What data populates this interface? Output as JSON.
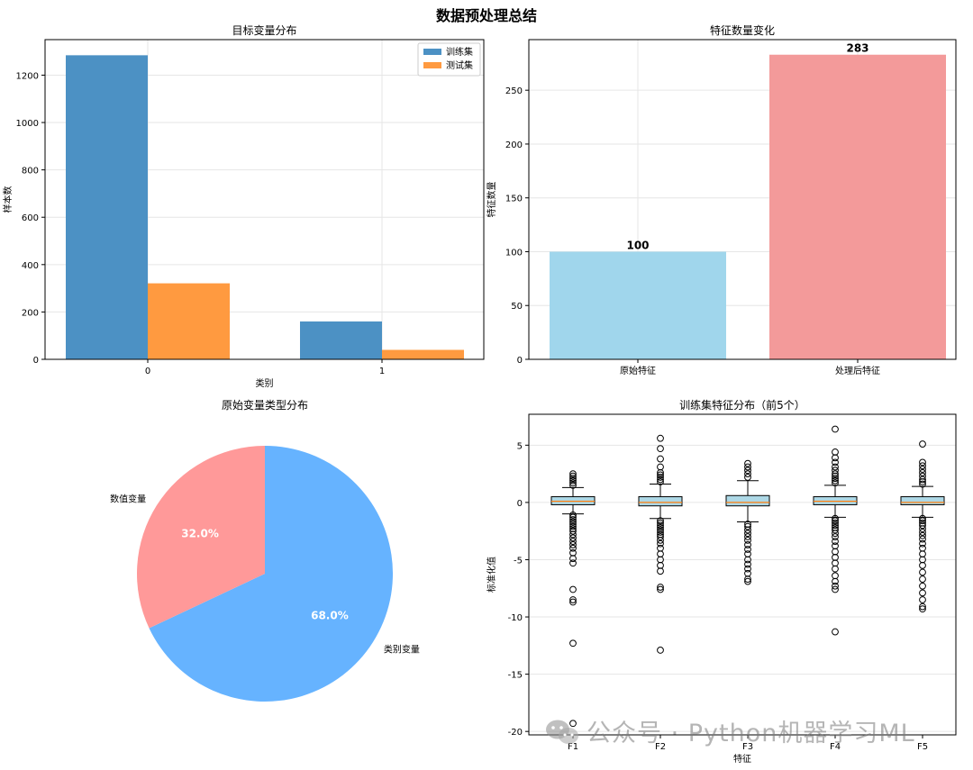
{
  "page_title": "数据预处理总结",
  "watermark": "公众号 · Python机器学习ML",
  "chart_data": [
    {
      "id": "target",
      "type": "bar",
      "title": "目标变量分布",
      "xlabel": "类别",
      "ylabel": "样本数",
      "categories": [
        "0",
        "1"
      ],
      "series": [
        {
          "name": "训练集",
          "values": [
            1284,
            160
          ],
          "color": "#4c91c4"
        },
        {
          "name": "测试集",
          "values": [
            321,
            40
          ],
          "color": "#ff9a40"
        }
      ],
      "ylim": [
        0,
        1350
      ],
      "yticks": [
        0,
        200,
        400,
        600,
        800,
        1000,
        1200
      ],
      "grid": true,
      "legend": "top-right"
    },
    {
      "id": "features",
      "type": "bar",
      "title": "特征数量变化",
      "xlabel": "",
      "ylabel": "特征数量",
      "categories": [
        "原始特征",
        "处理后特征"
      ],
      "values": [
        100,
        283
      ],
      "data_labels": [
        "100",
        "283"
      ],
      "colors": [
        "#a0d6ec",
        "#f39a9a"
      ],
      "ylim": [
        0,
        297
      ],
      "yticks": [
        0,
        50,
        100,
        150,
        200,
        250
      ],
      "grid": true
    },
    {
      "id": "types",
      "type": "pie",
      "title": "原始变量类型分布",
      "labels": [
        "类别变量",
        "数值变量"
      ],
      "values": [
        68.0,
        32.0
      ],
      "pct_labels": [
        "68.0%",
        "32.0%"
      ],
      "colors": [
        "#66b3ff",
        "#ff9999"
      ]
    },
    {
      "id": "boxes",
      "type": "box",
      "title": "训练集特征分布（前5个）",
      "xlabel": "特征",
      "ylabel": "标准化值",
      "categories": [
        "F1",
        "F2",
        "F3",
        "F4",
        "F5"
      ],
      "ylim": [
        -20.3,
        7.7
      ],
      "yticks": [
        -20,
        -15,
        -10,
        -5,
        0,
        5
      ],
      "grid": true,
      "box_color": "#add8e6",
      "median_color": "#ff7f0e",
      "boxes": [
        {
          "q1": -0.2,
          "median": 0.1,
          "q3": 0.5,
          "whisker_low": -1.0,
          "whisker_high": 1.3,
          "outliers": [
            1.5,
            1.7,
            1.9,
            2.1,
            2.3,
            2.5,
            -1.1,
            -1.3,
            -1.5,
            -1.7,
            -1.9,
            -2.1,
            -2.3,
            -2.5,
            -2.8,
            -3.1,
            -3.4,
            -3.7,
            -4.0,
            -4.4,
            -4.9,
            -5.3,
            -7.6,
            -8.5,
            -8.7,
            -12.3,
            -19.3
          ]
        },
        {
          "q1": -0.3,
          "median": 0.0,
          "q3": 0.5,
          "whisker_low": -1.4,
          "whisker_high": 1.6,
          "outliers": [
            1.8,
            2.0,
            2.2,
            2.4,
            2.6,
            3.1,
            3.8,
            4.7,
            5.6,
            -1.6,
            -1.8,
            -2.0,
            -2.2,
            -2.4,
            -2.6,
            -2.8,
            -3.0,
            -3.3,
            -3.6,
            -4.0,
            -4.5,
            -5.0,
            -5.5,
            -6.0,
            -7.4,
            -7.6,
            -12.9
          ]
        },
        {
          "q1": -0.3,
          "median": 0.0,
          "q3": 0.6,
          "whisker_low": -1.7,
          "whisker_high": 1.9,
          "outliers": [
            2.2,
            2.5,
            2.8,
            3.1,
            3.4,
            -1.9,
            -2.1,
            -2.4,
            -2.7,
            -3.0,
            -3.3,
            -3.7,
            -4.1,
            -4.5,
            -5.0,
            -5.4,
            -5.8,
            -6.2,
            -6.7,
            -6.9
          ]
        },
        {
          "q1": -0.2,
          "median": 0.1,
          "q3": 0.5,
          "whisker_low": -1.3,
          "whisker_high": 1.5,
          "outliers": [
            1.7,
            1.9,
            2.1,
            2.3,
            2.5,
            2.8,
            3.1,
            3.5,
            3.9,
            4.4,
            6.4,
            -1.4,
            -1.6,
            -1.8,
            -2.0,
            -2.2,
            -2.4,
            -2.7,
            -3.0,
            -3.4,
            -3.8,
            -4.3,
            -4.8,
            -5.3,
            -5.8,
            -6.4,
            -6.9,
            -7.3,
            -7.6,
            -11.3
          ]
        },
        {
          "q1": -0.2,
          "median": 0.0,
          "q3": 0.5,
          "whisker_low": -1.3,
          "whisker_high": 1.4,
          "outliers": [
            1.6,
            1.8,
            2.0,
            2.3,
            2.6,
            2.9,
            3.2,
            3.5,
            5.1,
            -1.4,
            -1.6,
            -1.8,
            -2.0,
            -2.3,
            -2.6,
            -2.9,
            -3.2,
            -3.6,
            -4.0,
            -4.5,
            -5.0,
            -5.5,
            -6.1,
            -6.7,
            -7.3,
            -7.9,
            -8.5,
            -9.1,
            -9.3
          ]
        }
      ]
    }
  ]
}
